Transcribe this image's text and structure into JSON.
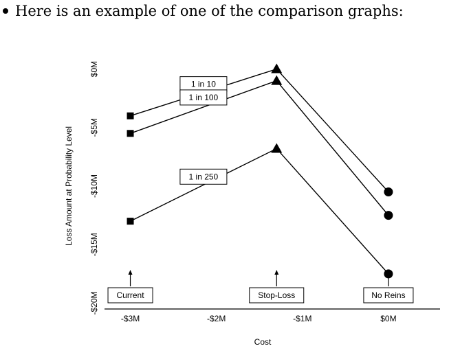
{
  "intro": "Here is an example of one of the comparison graphs:",
  "chart_data": {
    "type": "line",
    "xlabel": "Cost",
    "ylabel": "Loss Amount at Probability Level",
    "x_ticks": [
      "-$3M",
      "-$2M",
      "-$1M",
      "$0M"
    ],
    "x_tick_values": [
      -3,
      -2,
      -1,
      0
    ],
    "y_ticks": [
      "$0M",
      "-$5M",
      "-$10M",
      "-$15M",
      "-$20M"
    ],
    "y_tick_values": [
      0,
      -5,
      -10,
      -15,
      -20
    ],
    "xlim": [
      -3.3,
      0.6
    ],
    "ylim": [
      -20.5,
      0.5
    ],
    "categories": [
      "Current",
      "Stop-Loss",
      "No Reins"
    ],
    "category_x": [
      -3,
      -1.3,
      0
    ],
    "category_markers": [
      "square",
      "triangle",
      "circle"
    ],
    "series": [
      {
        "name": "1 in 10",
        "y": [
          -4,
          0,
          -10.5
        ]
      },
      {
        "name": "1 in 100",
        "y": [
          -5.5,
          -1,
          -12.5
        ]
      },
      {
        "name": "1 in 250",
        "y": [
          -13,
          -6.8,
          -17.5
        ]
      }
    ],
    "grid": false
  }
}
